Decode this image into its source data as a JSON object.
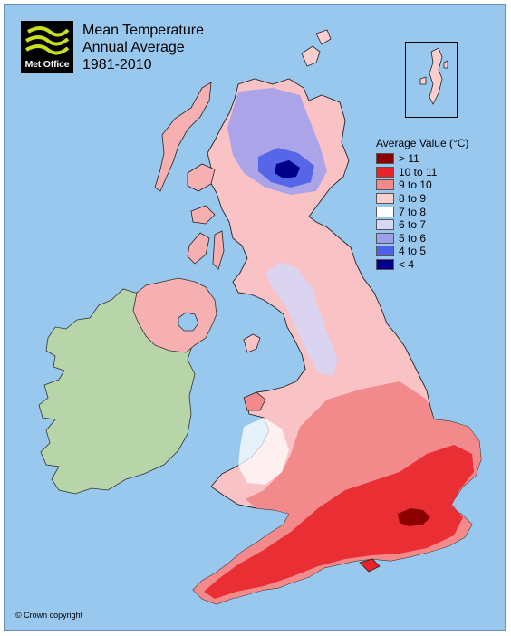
{
  "logo": {
    "text": "Met Office",
    "background": "#000000",
    "stripe_color": "#c7e01d"
  },
  "title": {
    "line1": "Mean Temperature",
    "line2": "Annual Average",
    "line3": "1981-2010"
  },
  "legend": {
    "title": "Average Value (°C)",
    "items": [
      {
        "label": "> 11",
        "color": "#8b0000"
      },
      {
        "label": "10 to 11",
        "color": "#e8242a"
      },
      {
        "label": "9 to 10",
        "color": "#f28a8c"
      },
      {
        "label": "8 to 9",
        "color": "#fbcfd0"
      },
      {
        "label": "7 to 8",
        "color": "#ffffff"
      },
      {
        "label": "6 to 7",
        "color": "#d6d6f5"
      },
      {
        "label": "5 to 6",
        "color": "#9f9ff0"
      },
      {
        "label": "4 to 5",
        "color": "#4b61e8"
      },
      {
        "label": "< 4",
        "color": "#00008b"
      }
    ]
  },
  "colors": {
    "sea": "#99c8ef",
    "ireland": "#b7d5a8",
    "coastline": "#222222"
  },
  "copyright": "© Crown copyright"
}
